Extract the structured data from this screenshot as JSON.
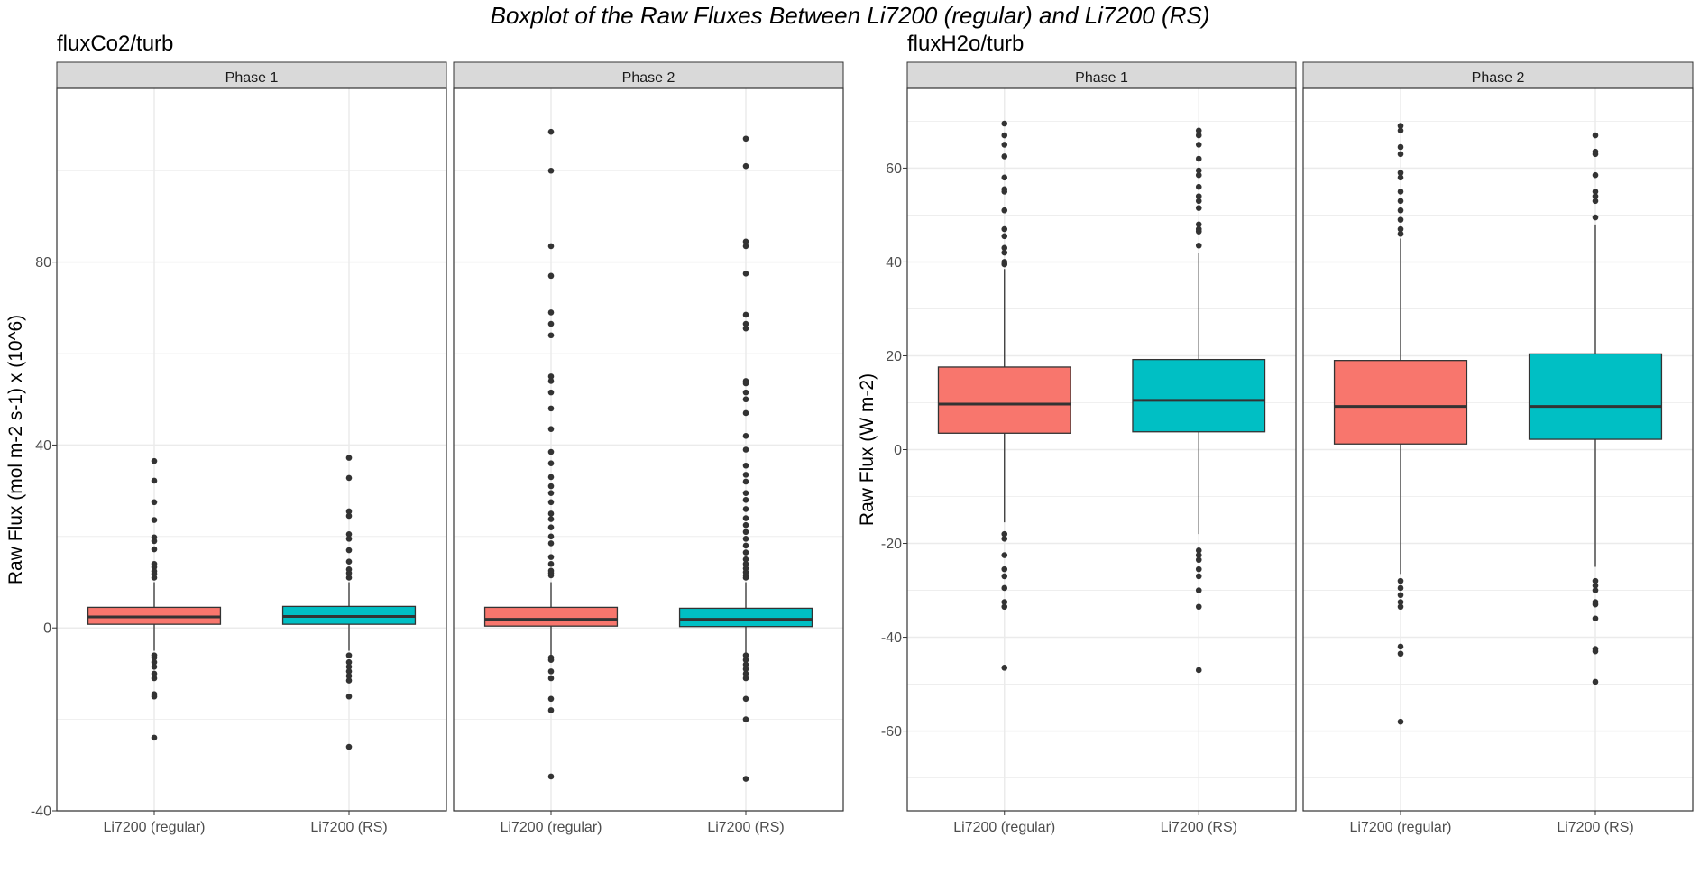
{
  "figure_title": "Boxplot of the Raw Fluxes Between Li7200 (regular) and Li7200 (RS)",
  "colors": {
    "regular": "#F8766D",
    "rs": "#00BFC4",
    "outlier": "#333333",
    "strip_bg": "#D9D9D9",
    "grid": "#EBEBEB"
  },
  "chart_data": [
    {
      "type": "boxplot",
      "title": "fluxCo2/turb",
      "ylabel": "Raw Flux (mol m-2 s-1) x (10^6)",
      "ylim": [
        -40,
        118
      ],
      "yticks": [
        -40,
        0,
        40,
        80
      ],
      "ytick_labels": [
        "-40",
        "0",
        "40",
        "80"
      ],
      "categories": [
        "Li7200 (regular)",
        "Li7200 (RS)"
      ],
      "facets": [
        {
          "label": "Phase 1",
          "boxes": [
            {
              "category": "Li7200 (regular)",
              "color": "#F8766D",
              "min": -5,
              "q1": 0.8,
              "median": 2.4,
              "q3": 4.5,
              "max": 10,
              "outliers": [
                36.5,
                32.2,
                27.5,
                23.6,
                19.8,
                19,
                17.2,
                14,
                13.3,
                12.4,
                11.8,
                11,
                -6,
                -6.5,
                -7.5,
                -8.5,
                -10,
                -11,
                -14.5,
                -15,
                -24
              ]
            },
            {
              "category": "Li7200 (RS)",
              "color": "#00BFC4",
              "min": -5,
              "q1": 0.8,
              "median": 2.5,
              "q3": 4.7,
              "max": 10,
              "outliers": [
                37.2,
                32.8,
                25.5,
                24.5,
                20.5,
                19.5,
                17,
                14.5,
                12.8,
                12,
                11,
                -6,
                -7.5,
                -8.5,
                -9.5,
                -10.5,
                -11.5,
                -15,
                -26
              ]
            }
          ]
        },
        {
          "label": "Phase 2",
          "boxes": [
            {
              "category": "Li7200 (regular)",
              "color": "#F8766D",
              "min": -6,
              "q1": 0.4,
              "median": 1.9,
              "q3": 4.5,
              "max": 10,
              "outliers": [
                108.5,
                100,
                83.5,
                77,
                69,
                66.5,
                64,
                55,
                54,
                51.5,
                48,
                43.5,
                38.5,
                36,
                33,
                31,
                29.5,
                27.5,
                25,
                23.8,
                22,
                20,
                18.5,
                15.5,
                14,
                12.5,
                12,
                11.5,
                -6.5,
                -7,
                -9.5,
                -11,
                -15.5,
                -18,
                -32.5
              ]
            },
            {
              "category": "Li7200 (RS)",
              "color": "#00BFC4",
              "min": -6,
              "q1": 0.3,
              "median": 1.9,
              "q3": 4.3,
              "max": 10,
              "outliers": [
                107,
                101,
                84.5,
                83.5,
                77.5,
                68.5,
                66.5,
                65.5,
                54,
                53.5,
                51.5,
                50,
                47,
                42,
                39,
                35.5,
                33.5,
                32,
                29.5,
                28,
                26,
                24,
                22.5,
                21,
                19.5,
                18,
                16.5,
                15,
                14,
                13,
                12.2,
                11.5,
                11,
                -6,
                -7,
                -8,
                -9,
                -10,
                -11,
                -15.5,
                -20,
                -33
              ]
            }
          ]
        }
      ]
    },
    {
      "type": "boxplot",
      "title": "fluxH2o/turb",
      "ylabel": "Raw Flux (W m-2)",
      "ylim": [
        -77,
        77
      ],
      "yticks": [
        -60,
        -40,
        -20,
        0,
        20,
        40,
        60
      ],
      "ytick_labels": [
        "-60",
        "-40",
        "-20",
        "0",
        "20",
        "40",
        "60"
      ],
      "categories": [
        "Li7200 (regular)",
        "Li7200 (RS)"
      ],
      "facets": [
        {
          "label": "Phase 1",
          "boxes": [
            {
              "category": "Li7200 (regular)",
              "color": "#F8766D",
              "min": -15.5,
              "q1": 3.5,
              "median": 9.7,
              "q3": 17.6,
              "max": 38.5,
              "outliers": [
                69.5,
                67,
                65,
                62.5,
                58,
                55.5,
                55,
                51,
                47,
                45.5,
                43,
                42,
                40,
                39.5,
                -18,
                -19,
                -22.5,
                -25.5,
                -27,
                -29.5,
                -32.5,
                -33.5,
                -46.5
              ]
            },
            {
              "category": "Li7200 (RS)",
              "color": "#00BFC4",
              "min": -18,
              "q1": 3.8,
              "median": 10.5,
              "q3": 19.2,
              "max": 42,
              "outliers": [
                68,
                67,
                65,
                62,
                59.5,
                58.5,
                56,
                54,
                53,
                51.5,
                48,
                47,
                46.5,
                43.5,
                -21.5,
                -22.5,
                -23.5,
                -25.5,
                -27,
                -30,
                -33.5,
                -47
              ]
            }
          ]
        },
        {
          "label": "Phase 2",
          "boxes": [
            {
              "category": "Li7200 (regular)",
              "color": "#F8766D",
              "min": -26.5,
              "q1": 1.2,
              "median": 9.2,
              "q3": 19,
              "max": 45,
              "outliers": [
                69,
                68,
                64.5,
                63,
                59,
                58,
                55,
                53,
                51,
                49,
                47,
                46,
                -28,
                -29.5,
                -31,
                -32.5,
                -33.5,
                -42,
                -43.5,
                -58
              ]
            },
            {
              "category": "Li7200 (RS)",
              "color": "#00BFC4",
              "min": -25,
              "q1": 2.2,
              "median": 9.2,
              "q3": 20.4,
              "max": 48,
              "outliers": [
                67,
                63.5,
                63,
                58.5,
                55,
                54,
                53,
                49.5,
                -28,
                -29,
                -30,
                -32.5,
                -33,
                -36,
                -42.5,
                -43,
                -49.5
              ]
            }
          ]
        }
      ]
    }
  ]
}
